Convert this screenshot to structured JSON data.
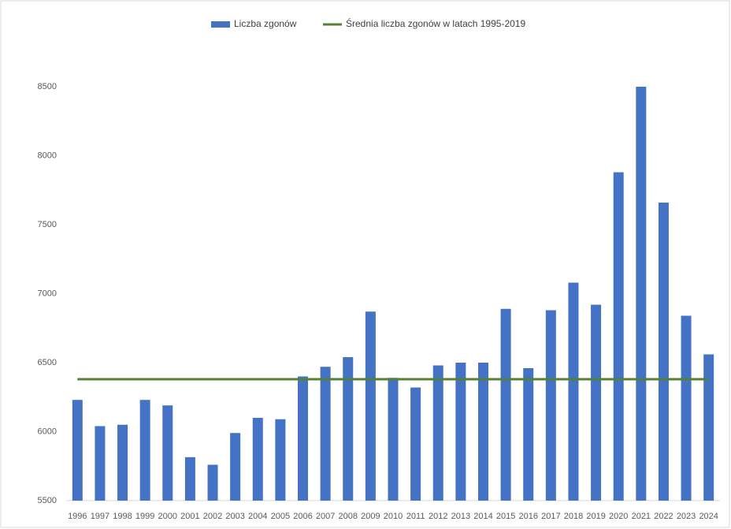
{
  "chart_data": {
    "type": "bar",
    "categories": [
      "1996",
      "1997",
      "1998",
      "1999",
      "2000",
      "2001",
      "2002",
      "2003",
      "2004",
      "2005",
      "2006",
      "2007",
      "2008",
      "2009",
      "2010",
      "2011",
      "2012",
      "2013",
      "2014",
      "2015",
      "2016",
      "2017",
      "2018",
      "2019",
      "2020",
      "2021",
      "2022",
      "2023",
      "2024"
    ],
    "series": [
      {
        "name": "Liczba zgonów",
        "type": "bar",
        "color": "#4472c4",
        "values": [
          6230,
          6040,
          6050,
          6230,
          6190,
          5815,
          5760,
          5990,
          6100,
          6090,
          6400,
          6470,
          6540,
          6870,
          6390,
          6320,
          6480,
          6500,
          6500,
          6890,
          6460,
          6880,
          7080,
          6920,
          7880,
          8500,
          7660,
          6840,
          6560
        ]
      },
      {
        "name": "Średnia liczba zgonów w latach 1995-2019",
        "type": "line",
        "color": "#548235",
        "values": [
          6380,
          6380,
          6380,
          6380,
          6380,
          6380,
          6380,
          6380,
          6380,
          6380,
          6380,
          6380,
          6380,
          6380,
          6380,
          6380,
          6380,
          6380,
          6380,
          6380,
          6380,
          6380,
          6380,
          6380,
          6380,
          6380,
          6380,
          6380,
          6380
        ]
      }
    ],
    "ylim": [
      5500,
      8800
    ],
    "yticks": [
      5500,
      6000,
      6500,
      7000,
      7500,
      8000,
      8500
    ],
    "grid": false,
    "legend": "top"
  }
}
